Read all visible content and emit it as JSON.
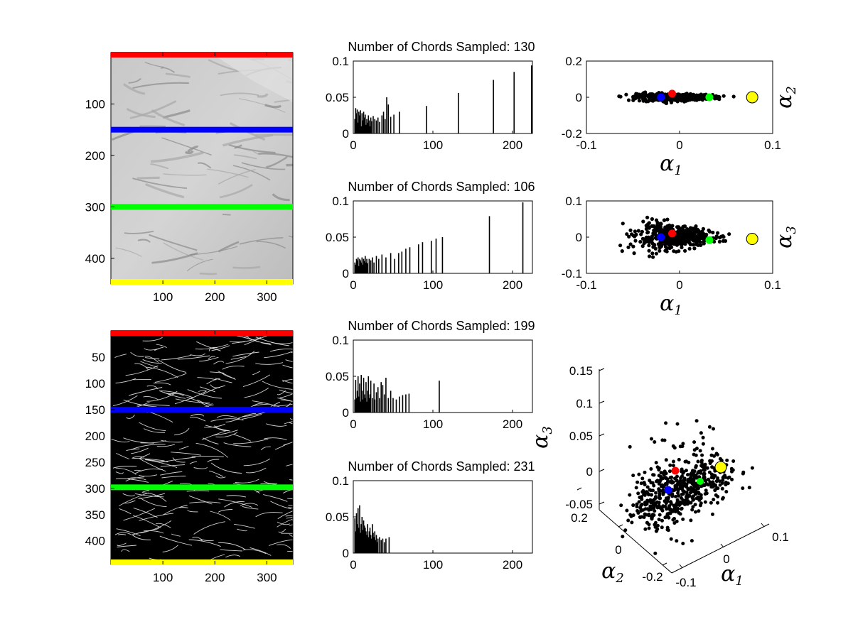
{
  "chart_data": [
    {
      "id": "image_gray",
      "type": "heatmap",
      "description_free": true,
      "xticks": [
        "100",
        "200",
        "300"
      ],
      "yticks": [
        "100",
        "200",
        "300",
        "400"
      ],
      "xlim": [
        0,
        350
      ],
      "ylim": [
        0,
        450
      ],
      "lines": [
        {
          "y": 0,
          "color": "#ff0000"
        },
        {
          "y": 150,
          "color": "#0000ff"
        },
        {
          "y": 300,
          "color": "#00ff00"
        },
        {
          "y": 450,
          "color": "#ffff00"
        }
      ]
    },
    {
      "id": "hist_1",
      "type": "bar",
      "title": "Number of Chords Sampled: 130",
      "xlim": [
        0,
        225
      ],
      "ylim": [
        0,
        0.1
      ],
      "xticks": [
        "0",
        "100",
        "200"
      ],
      "yticks": [
        "0",
        "0.05",
        "0.1"
      ],
      "x": [
        2,
        3,
        4,
        5,
        6,
        7,
        8,
        9,
        10,
        11,
        12,
        13,
        14,
        15,
        16,
        17,
        18,
        19,
        20,
        21,
        22,
        23,
        25,
        27,
        29,
        31,
        33,
        36,
        38,
        40,
        42,
        44,
        47,
        51,
        58,
        92,
        132,
        176,
        202,
        224
      ],
      "values": [
        0.02,
        0.035,
        0.028,
        0.033,
        0.015,
        0.03,
        0.025,
        0.032,
        0.01,
        0.028,
        0.018,
        0.03,
        0.022,
        0.026,
        0.012,
        0.02,
        0.015,
        0.025,
        0.018,
        0.01,
        0.022,
        0.017,
        0.024,
        0.02,
        0.018,
        0.022,
        0.016,
        0.025,
        0.03,
        0.02,
        0.05,
        0.04,
        0.023,
        0.026,
        0.03,
        0.038,
        0.056,
        0.074,
        0.085,
        0.094
      ]
    },
    {
      "id": "hist_2",
      "type": "bar",
      "title": "Number of Chords Sampled: 106",
      "xlim": [
        0,
        225
      ],
      "ylim": [
        0,
        0.1
      ],
      "xticks": [
        "0",
        "100",
        "200"
      ],
      "yticks": [
        "0",
        "0.05",
        "0.1"
      ],
      "x": [
        2,
        3,
        4,
        5,
        6,
        7,
        8,
        9,
        10,
        11,
        12,
        13,
        14,
        15,
        16,
        17,
        18,
        20,
        22,
        24,
        26,
        29,
        32,
        36,
        41,
        47,
        52,
        57,
        61,
        66,
        71,
        82,
        87,
        98,
        104,
        112,
        171,
        213
      ],
      "values": [
        0.015,
        0.012,
        0.02,
        0.018,
        0.022,
        0.01,
        0.02,
        0.018,
        0.015,
        0.022,
        0.012,
        0.02,
        0.017,
        0.024,
        0.015,
        0.02,
        0.014,
        0.02,
        0.018,
        0.022,
        0.015,
        0.024,
        0.02,
        0.026,
        0.022,
        0.028,
        0.02,
        0.028,
        0.03,
        0.034,
        0.036,
        0.04,
        0.043,
        0.045,
        0.048,
        0.05,
        0.079,
        0.098
      ]
    },
    {
      "id": "hist_3",
      "type": "bar",
      "title": "Number of Chords Sampled: 199",
      "xlim": [
        0,
        225
      ],
      "ylim": [
        0,
        0.1
      ],
      "xticks": [
        "0",
        "100",
        "200"
      ],
      "yticks": [
        "0",
        "0.05",
        "0.1"
      ],
      "x": [
        2,
        3,
        4,
        5,
        6,
        7,
        8,
        9,
        10,
        11,
        12,
        13,
        14,
        15,
        16,
        17,
        18,
        19,
        20,
        21,
        22,
        24,
        26,
        27,
        29,
        31,
        33,
        35,
        37,
        39,
        41,
        44,
        47,
        50,
        54,
        58,
        62,
        66,
        70,
        108
      ],
      "values": [
        0.018,
        0.045,
        0.02,
        0.03,
        0.05,
        0.022,
        0.04,
        0.015,
        0.052,
        0.03,
        0.018,
        0.048,
        0.025,
        0.02,
        0.042,
        0.015,
        0.03,
        0.05,
        0.02,
        0.025,
        0.044,
        0.02,
        0.04,
        0.018,
        0.028,
        0.035,
        0.02,
        0.042,
        0.038,
        0.025,
        0.048,
        0.02,
        0.03,
        0.02,
        0.018,
        0.022,
        0.024,
        0.025,
        0.026,
        0.044
      ]
    },
    {
      "id": "hist_4",
      "type": "bar",
      "title": "Number of Chords Sampled: 231",
      "xlim": [
        0,
        225
      ],
      "ylim": [
        0,
        0.1
      ],
      "xticks": [
        "0",
        "100",
        "200"
      ],
      "yticks": [
        "0",
        "0.05",
        "0.1"
      ],
      "x": [
        2,
        3,
        4,
        5,
        6,
        7,
        8,
        9,
        10,
        11,
        12,
        13,
        14,
        15,
        16,
        17,
        18,
        19,
        20,
        21,
        22,
        23,
        24,
        25,
        26,
        27,
        28,
        29,
        30,
        31,
        33,
        35,
        37,
        39,
        41,
        45
      ],
      "values": [
        0.048,
        0.03,
        0.055,
        0.04,
        0.062,
        0.035,
        0.066,
        0.028,
        0.04,
        0.05,
        0.032,
        0.045,
        0.038,
        0.035,
        0.03,
        0.025,
        0.04,
        0.022,
        0.03,
        0.035,
        0.025,
        0.02,
        0.04,
        0.028,
        0.022,
        0.03,
        0.018,
        0.025,
        0.015,
        0.02,
        0.022,
        0.018,
        0.02,
        0.015,
        0.02,
        0.022
      ]
    },
    {
      "id": "image_edges",
      "type": "heatmap",
      "xticks": [
        "100",
        "200",
        "300"
      ],
      "yticks": [
        "50",
        "100",
        "150",
        "200",
        "250",
        "300",
        "350",
        "400"
      ],
      "xlim": [
        0,
        350
      ],
      "ylim": [
        0,
        445
      ],
      "lines": [
        {
          "y": 0,
          "color": "#ff0000"
        },
        {
          "y": 150,
          "color": "#0000ff"
        },
        {
          "y": 298,
          "color": "#00ff00"
        },
        {
          "y": 445,
          "color": "#ffff00"
        }
      ]
    },
    {
      "id": "scatter_12",
      "type": "scatter",
      "xlabel_base": "α",
      "xlabel_sub": "1",
      "ylabel_base": "α",
      "ylabel_sub": "2",
      "xlim": [
        -0.1,
        0.1
      ],
      "ylim": [
        -0.2,
        0.2
      ],
      "xticks": [
        "-0.1",
        "0",
        "0.1"
      ],
      "yticks": [
        "-0.2",
        "0",
        "0.2"
      ],
      "highlights": [
        {
          "x": -0.02,
          "y": 0.0,
          "color": "#0000ff"
        },
        {
          "x": -0.008,
          "y": 0.02,
          "color": "#ff0000"
        },
        {
          "x": 0.032,
          "y": 0.0,
          "color": "#00ff00"
        },
        {
          "x": 0.078,
          "y": 0.0,
          "color": "#ffff00"
        }
      ]
    },
    {
      "id": "scatter_13",
      "type": "scatter",
      "xlabel_base": "α",
      "xlabel_sub": "1",
      "ylabel_base": "α",
      "ylabel_sub": "3",
      "xlim": [
        -0.1,
        0.1
      ],
      "ylim": [
        -0.1,
        0.1
      ],
      "xticks": [
        "-0.1",
        "0",
        "0.1"
      ],
      "yticks": [
        "-0.1",
        "0",
        "0.1"
      ],
      "highlights": [
        {
          "x": -0.02,
          "y": 0.0,
          "color": "#0000ff"
        },
        {
          "x": -0.008,
          "y": 0.01,
          "color": "#ff0000"
        },
        {
          "x": 0.032,
          "y": -0.008,
          "color": "#00ff00"
        },
        {
          "x": 0.078,
          "y": -0.005,
          "color": "#ffff00"
        }
      ]
    },
    {
      "id": "scatter_3d",
      "type": "scatter",
      "xlabel_base": "α",
      "xlabel_sub": "1",
      "ylabel_base": "α",
      "ylabel_sub": "2",
      "zlabel_base": "α",
      "zlabel_sub": "3",
      "zticks": [
        "-0.05",
        "0",
        "0.05",
        "0.1",
        "0.15"
      ],
      "xticks": [
        "-0.1",
        "0",
        "0.1"
      ],
      "yticks": [
        "-0.2",
        "0",
        "0.2"
      ]
    }
  ]
}
